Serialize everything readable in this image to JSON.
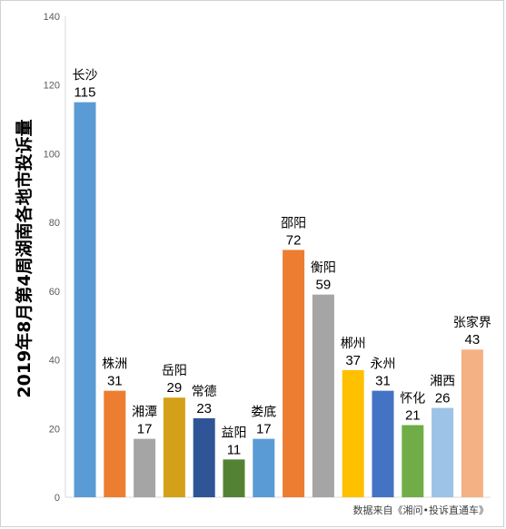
{
  "chart_data": {
    "type": "bar",
    "ylabel": "2019年8月第4周湖南各地市投诉量",
    "ylim": [
      0,
      140
    ],
    "yticks": [
      0,
      20,
      40,
      60,
      80,
      100,
      120,
      140
    ],
    "grid": false,
    "categories": [
      "长沙",
      "株洲",
      "湘潭",
      "岳阳",
      "常德",
      "益阳",
      "娄底",
      "邵阳",
      "衡阳",
      "郴州",
      "永州",
      "怀化",
      "湘西",
      "张家界"
    ],
    "values": [
      115,
      31,
      17,
      29,
      23,
      11,
      17,
      72,
      59,
      37,
      31,
      21,
      26,
      43
    ],
    "colors": [
      "#5b9bd5",
      "#ed7d31",
      "#a5a5a5",
      "#d4a017",
      "#2f5597",
      "#548235",
      "#5b9bd5",
      "#ed7d31",
      "#a5a5a5",
      "#ffc000",
      "#4472c4",
      "#70ad47",
      "#9dc3e6",
      "#f4b183"
    ],
    "source": "数据来自《湘问•投诉直通车》"
  }
}
